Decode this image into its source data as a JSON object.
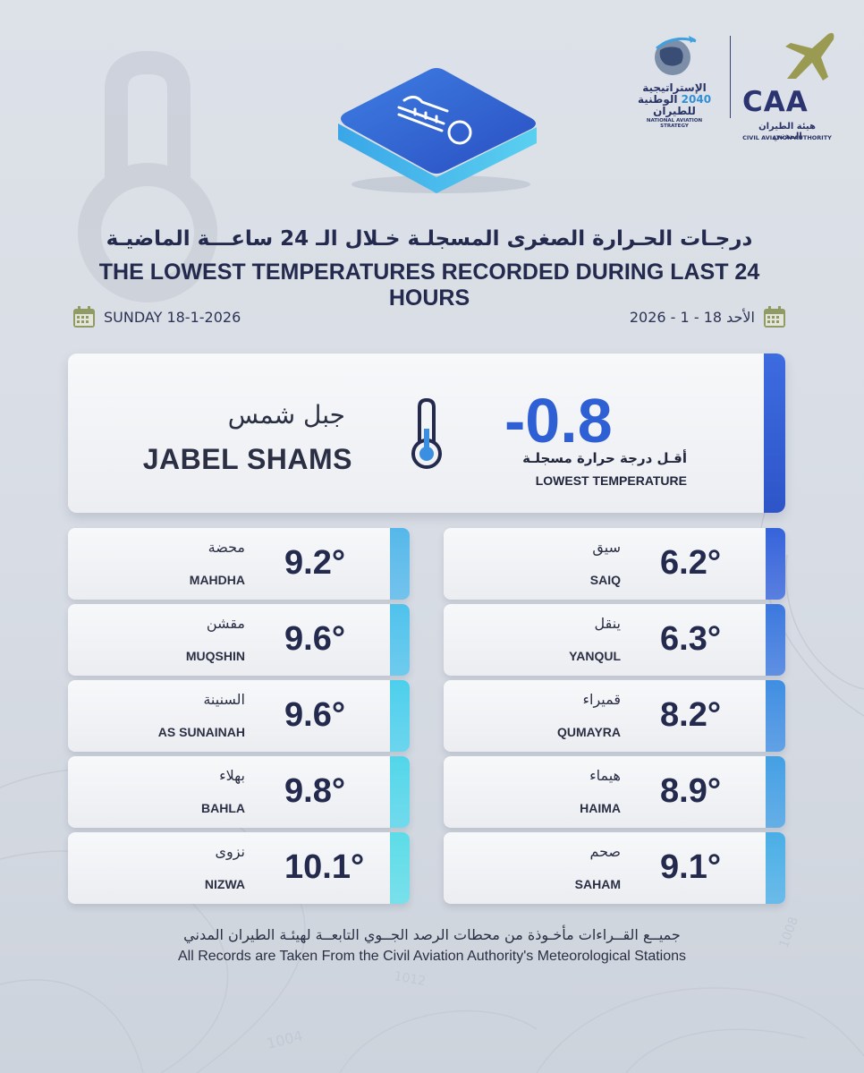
{
  "logos": {
    "strategy_ar_line1": "الإستراتيجية",
    "strategy_year": "2040",
    "strategy_ar_line2": "الوطنية للطيران",
    "strategy_en": "NATIONAL AVIATION STRATEGY",
    "caa_word": "CAA",
    "caa_ar": "هيئة الطيران المدني",
    "caa_en": "CIVIL AVIATION AUTHORITY"
  },
  "title": {
    "ar": "درجـات الحـرارة الصغرى المسجلـة خـلال الـ 24 ساعـــة الماضيـة",
    "en": "THE LOWEST TEMPERATURES RECORDED DURING LAST 24 HOURS"
  },
  "date": {
    "en": "SUNDAY  18-1-2026",
    "ar": "الأحد 18 - 1 - 2026"
  },
  "lowest": {
    "city_ar": "جبل شمس",
    "city_en": "JABEL SHAMS",
    "value": "-0.8",
    "label_ar": "أقـل درجة حرارة مسجلـة",
    "label_en": "LOWEST TEMPERATURE"
  },
  "stations_left": [
    {
      "ar": "محضة",
      "en": "MAHDHA",
      "value": "9.2°",
      "color": "#55b8ea"
    },
    {
      "ar": "مقشن",
      "en": "MUQSHIN",
      "value": "9.6°",
      "color": "#4fc2ec"
    },
    {
      "ar": "السنينة",
      "en": "AS SUNAINAH",
      "value": "9.6°",
      "color": "#4ccfec"
    },
    {
      "ar": "بهلاء",
      "en": "BAHLA",
      "value": "9.8°",
      "color": "#52d6ea"
    },
    {
      "ar": "نزوى",
      "en": "NIZWA",
      "value": "10.1°",
      "color": "#5cdce8"
    }
  ],
  "stations_right": [
    {
      "ar": "سيق",
      "en": "SAIQ",
      "value": "6.2°",
      "color": "#3563da"
    },
    {
      "ar": "ينقل",
      "en": "YANQUL",
      "value": "6.3°",
      "color": "#3b78de"
    },
    {
      "ar": "قميراء",
      "en": "QUMAYRA",
      "value": "8.2°",
      "color": "#3f8ee2"
    },
    {
      "ar": "هيماء",
      "en": "HAIMA",
      "value": "8.9°",
      "color": "#449fe4"
    },
    {
      "ar": "صحم",
      "en": "SAHAM",
      "value": "9.1°",
      "color": "#4aaee6"
    }
  ],
  "footer": {
    "ar": "جميــع القــراءات مأخـوذة من محطات الرصد الجــوي التابعــة لهيئـة الطيران المدني",
    "en": "All Records are Taken From the Civil Aviation Authority's Meteorological Stations"
  }
}
